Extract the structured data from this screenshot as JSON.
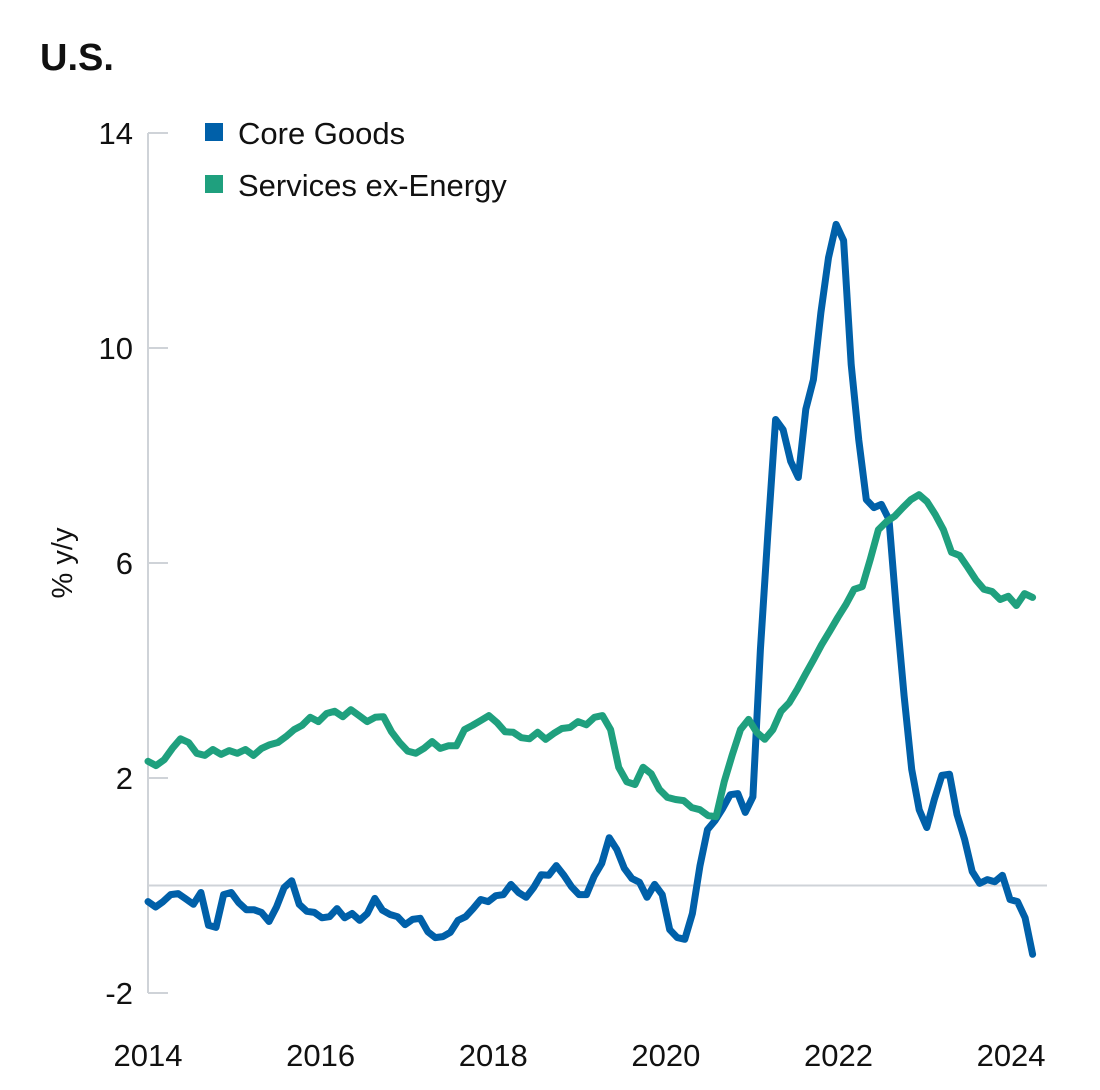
{
  "chart_data": {
    "type": "line",
    "title": "U.S.",
    "xlabel": "",
    "ylabel": "% y/y",
    "ylim": [
      -2,
      14
    ],
    "yticks": [
      "14",
      "10",
      "6",
      "2",
      "-2"
    ],
    "ytick_values": [
      14,
      10,
      6,
      2,
      -2
    ],
    "xticks": [
      "2014",
      "2016",
      "2018",
      "2020",
      "2022",
      "2024"
    ],
    "xtick_values": [
      2014,
      2016,
      2018,
      2020,
      2022,
      2024
    ],
    "xlim": [
      2014,
      2024.37
    ],
    "zero_line": true,
    "grid": false,
    "legend_position": "top-left",
    "series": [
      {
        "name": "Core Goods",
        "color": "#0060A9",
        "start": "2014-01",
        "end": "2024-04",
        "values": [
          -0.3,
          -0.4,
          -0.3,
          -0.17,
          -0.15,
          -0.25,
          -0.35,
          -0.13,
          -0.74,
          -0.78,
          -0.17,
          -0.13,
          -0.32,
          -0.45,
          -0.45,
          -0.5,
          -0.67,
          -0.4,
          -0.04,
          0.09,
          -0.35,
          -0.48,
          -0.5,
          -0.6,
          -0.58,
          -0.43,
          -0.6,
          -0.52,
          -0.65,
          -0.52,
          -0.24,
          -0.46,
          -0.54,
          -0.58,
          -0.73,
          -0.63,
          -0.61,
          -0.86,
          -0.97,
          -0.95,
          -0.87,
          -0.65,
          -0.58,
          -0.43,
          -0.26,
          -0.3,
          -0.19,
          -0.17,
          0.02,
          -0.13,
          -0.22,
          -0.04,
          0.2,
          0.19,
          0.37,
          0.19,
          -0.02,
          -0.17,
          -0.17,
          0.17,
          0.41,
          0.89,
          0.67,
          0.32,
          0.13,
          0.06,
          -0.22,
          0.02,
          -0.17,
          -0.82,
          -0.97,
          -1.0,
          -0.52,
          0.37,
          1.04,
          1.21,
          1.43,
          1.69,
          1.71,
          1.36,
          1.65,
          4.39,
          6.59,
          8.67,
          8.48,
          7.89,
          7.59,
          8.86,
          9.41,
          10.66,
          11.68,
          12.3,
          12.0,
          9.69,
          8.3,
          7.18,
          7.03,
          7.09,
          6.81,
          5.1,
          3.53,
          2.16,
          1.41,
          1.08,
          1.6,
          2.05,
          2.07,
          1.32,
          0.86,
          0.26,
          0.04,
          0.11,
          0.07,
          0.19,
          -0.26,
          -0.3,
          -0.6,
          -1.28
        ]
      },
      {
        "name": "Services ex-Energy",
        "color": "#1FA07E",
        "start": "2014-01",
        "end": "2024-04",
        "values": [
          2.31,
          2.23,
          2.34,
          2.55,
          2.73,
          2.66,
          2.46,
          2.42,
          2.53,
          2.44,
          2.51,
          2.46,
          2.53,
          2.42,
          2.55,
          2.62,
          2.66,
          2.77,
          2.9,
          2.98,
          3.13,
          3.05,
          3.2,
          3.24,
          3.14,
          3.27,
          3.16,
          3.05,
          3.13,
          3.14,
          2.86,
          2.66,
          2.5,
          2.46,
          2.55,
          2.68,
          2.55,
          2.6,
          2.6,
          2.9,
          2.98,
          3.07,
          3.16,
          3.03,
          2.86,
          2.85,
          2.75,
          2.73,
          2.85,
          2.72,
          2.83,
          2.92,
          2.94,
          3.05,
          2.99,
          3.13,
          3.16,
          2.9,
          2.2,
          1.93,
          1.88,
          2.2,
          2.08,
          1.79,
          1.64,
          1.6,
          1.58,
          1.45,
          1.41,
          1.3,
          1.28,
          1.93,
          2.44,
          2.9,
          3.09,
          2.85,
          2.72,
          2.9,
          3.24,
          3.4,
          3.65,
          3.93,
          4.2,
          4.48,
          4.73,
          4.99,
          5.23,
          5.51,
          5.56,
          6.07,
          6.62,
          6.77,
          6.87,
          7.03,
          7.18,
          7.27,
          7.14,
          6.9,
          6.62,
          6.2,
          6.14,
          5.92,
          5.69,
          5.51,
          5.47,
          5.32,
          5.38,
          5.21,
          5.43,
          5.36
        ]
      }
    ]
  }
}
